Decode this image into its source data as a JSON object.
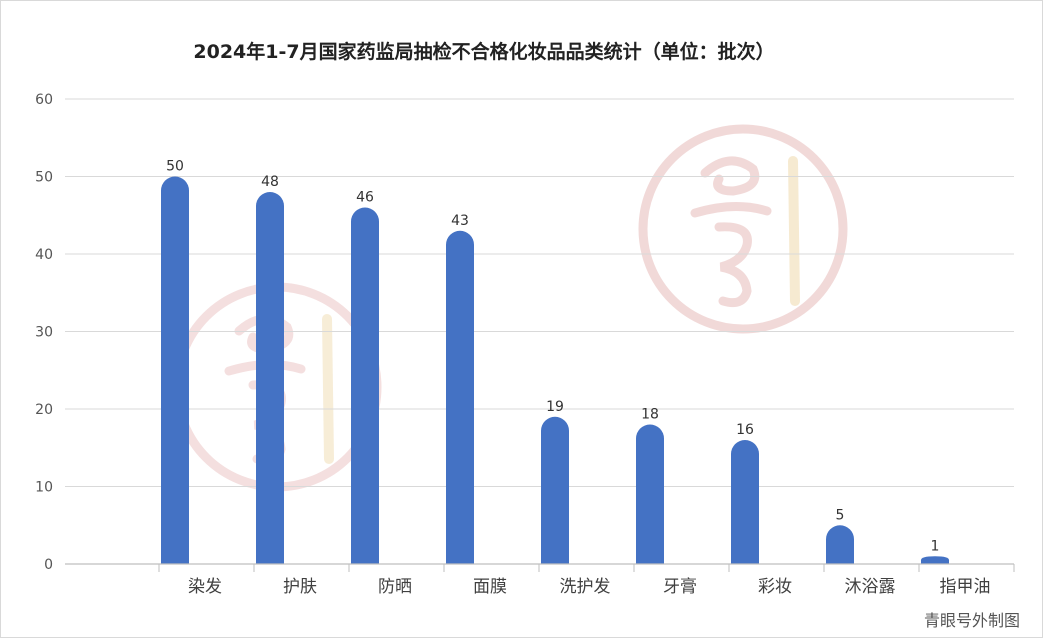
{
  "chart_data": {
    "type": "bar",
    "title": "2024年1-7月国家药监局抽检不合格化妆品品类统计（单位：批次）",
    "xlabel": "",
    "ylabel": "",
    "categories": [
      "染发",
      "护肤",
      "防晒",
      "面膜",
      "洗护发",
      "牙膏",
      "彩妆",
      "沐浴露",
      "指甲油"
    ],
    "series": [
      {
        "values": [
          50,
          48,
          46,
          43,
          19,
          18,
          16,
          5,
          1
        ]
      }
    ],
    "ylim": [
      0,
      60
    ],
    "yticks": [
      0,
      10,
      20,
      30,
      40,
      50,
      60
    ],
    "grid": true,
    "legend": "none",
    "bar_color": "#4472C4",
    "grid_color": "#d9d9d9"
  },
  "credit": "青眼号外制图",
  "watermark": {
    "icon": "red-seal-watermark-icon",
    "color": "#c0504d"
  }
}
